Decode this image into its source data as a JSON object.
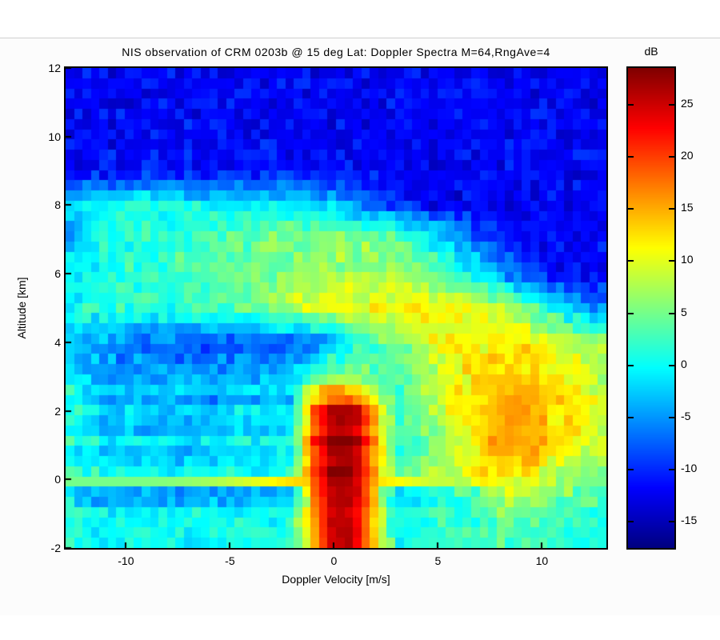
{
  "figure": {
    "title": "NIS observation of CRM 0203b @ 15 deg Lat: Doppler Spectra M=64,RngAve=4",
    "xlabel": "Doppler Velocity [m/s]",
    "ylabel": "Altitude [km]",
    "colorbar_title": "dB"
  },
  "axes": {
    "x_ticks": [
      -10,
      -5,
      0,
      5,
      10
    ],
    "y_ticks": [
      12,
      10,
      8,
      6,
      4,
      2,
      0,
      -2
    ],
    "colorbar_ticks": [
      25,
      20,
      15,
      10,
      5,
      0,
      -5,
      -10,
      -15
    ]
  },
  "chart_data": {
    "type": "heatmap",
    "title": "NIS observation of CRM 0203b @ 15 deg Lat: Doppler Spectra M=64,RngAve=4",
    "xlabel": "Doppler Velocity [m/s]",
    "ylabel": "Altitude [km]",
    "colorbar_label": "dB",
    "colormap": "jet",
    "color_limits_dB": [
      -17.5,
      28.5
    ],
    "x_range_displayed": [
      -12.9,
      13.1
    ],
    "y_range": [
      -2,
      12
    ],
    "x_ticks": [
      -10,
      -5,
      0,
      5,
      10
    ],
    "y_ticks": [
      12,
      10,
      8,
      6,
      4,
      2,
      0,
      -2
    ],
    "colorbar_ticks_dB": [
      25,
      20,
      15,
      10,
      5,
      0,
      -5,
      -10,
      -15
    ],
    "spectral_bins": 64,
    "range_gates": 47,
    "grid_velocity_mps": [
      -13,
      -12,
      -11,
      -10,
      -9,
      -8,
      -7,
      -6,
      -5,
      -4,
      -3,
      -2,
      -1,
      0,
      1,
      2,
      3,
      4,
      5,
      6,
      7,
      8,
      9,
      10,
      11,
      12,
      13
    ],
    "grid_altitude_km": [
      12,
      11,
      10,
      9,
      8,
      7,
      6,
      5,
      4,
      3,
      2,
      1,
      0,
      -1,
      -2
    ],
    "values_dB": [
      [
        -12,
        -12,
        -12,
        -12,
        -12,
        -12,
        -12,
        -12,
        -12,
        -12,
        -12,
        -12,
        -12,
        -12,
        -12,
        -12,
        -12,
        -12,
        -12,
        -12,
        -12,
        -12,
        -12,
        -12,
        -12,
        -12,
        -12
      ],
      [
        -12,
        -12,
        -12,
        -12,
        -12,
        -12,
        -12,
        -12,
        -12,
        -12,
        -12,
        -12,
        -12,
        -12,
        -12,
        -12,
        -12,
        -12,
        -12,
        -12,
        -12,
        -12,
        -12,
        -12,
        -12,
        -12,
        -12
      ],
      [
        -12,
        -12,
        -12,
        -12,
        -12,
        -12,
        -12,
        -12,
        -12,
        -12,
        -12,
        -12,
        -12,
        -12,
        -12,
        -12,
        -12,
        -12,
        -12,
        -12,
        -12,
        -12,
        -12,
        -12,
        -12,
        -12,
        -12
      ],
      [
        -12,
        -12,
        -12,
        -12,
        -11,
        -11,
        -11,
        -11,
        -11,
        -11,
        -11,
        -11,
        -11,
        -11,
        -11,
        -12,
        -12,
        -12,
        -12,
        -12,
        -12,
        -12,
        -12,
        -12,
        -12,
        -12,
        -12
      ],
      [
        -3,
        -1,
        0,
        1,
        1,
        0,
        0,
        0,
        0,
        -1,
        -1,
        -1,
        -2,
        -3,
        -5,
        -7,
        -9,
        -11,
        -12,
        -12,
        -12,
        -12,
        -12,
        -12,
        -12,
        -12,
        -12
      ],
      [
        -4,
        -2,
        0,
        1,
        2,
        2,
        3,
        3,
        4,
        4,
        5,
        5,
        6,
        6,
        6,
        6,
        5,
        2,
        -1,
        -4,
        -7,
        -10,
        -12,
        -12,
        -12,
        -12,
        -12
      ],
      [
        -1,
        0,
        1,
        2,
        2,
        2,
        3,
        3,
        4,
        5,
        5,
        6,
        6,
        7,
        7,
        7,
        7,
        6,
        4,
        1,
        -2,
        -5,
        -8,
        -10,
        -12,
        -12,
        -12
      ],
      [
        0,
        1,
        1,
        2,
        2,
        2,
        2,
        3,
        3,
        4,
        6,
        8,
        10,
        11,
        11,
        11,
        12,
        12,
        11,
        11,
        10,
        8,
        6,
        2,
        -2,
        -5,
        -7
      ],
      [
        -1,
        -4,
        -5,
        -6,
        -7,
        -7,
        -7,
        -8,
        -8,
        -7,
        -7,
        -8,
        -8,
        -4,
        1,
        3,
        5,
        8,
        10,
        11,
        11,
        12,
        12,
        12,
        10,
        8,
        6
      ],
      [
        0,
        -2,
        -4,
        -5,
        -5,
        -5,
        -5,
        -5,
        -4,
        -4,
        -4,
        -2,
        3,
        6,
        6,
        4,
        3,
        6,
        9,
        11,
        13,
        14,
        14,
        13,
        12,
        10,
        8
      ],
      [
        1,
        -1,
        -3,
        -3,
        -3,
        -3,
        -3,
        -3,
        -2,
        -2,
        -2,
        -2,
        18,
        26,
        26,
        14,
        2,
        4,
        8,
        11,
        13,
        15,
        16,
        14,
        12,
        11,
        9
      ],
      [
        1,
        0,
        -2,
        -2,
        -2,
        -2,
        -2,
        -1,
        -1,
        -1,
        -1,
        0,
        20,
        28,
        27,
        15,
        2,
        3,
        6,
        9,
        12,
        15,
        16,
        14,
        12,
        10,
        8
      ],
      [
        1,
        0,
        -1,
        -1,
        -1,
        -1,
        -1,
        -1,
        -1,
        -1,
        -1,
        0,
        18,
        27,
        26,
        14,
        4,
        5,
        7,
        9,
        11,
        12,
        11,
        9,
        7,
        6,
        5
      ],
      [
        1,
        0,
        0,
        0,
        0,
        0,
        0,
        0,
        0,
        0,
        0,
        1,
        16,
        26,
        25,
        13,
        1,
        1,
        2,
        3,
        3,
        4,
        4,
        3,
        2,
        2,
        1
      ],
      [
        1,
        1,
        0,
        0,
        0,
        0,
        0,
        1,
        1,
        1,
        1,
        2,
        14,
        26,
        25,
        12,
        1,
        1,
        1,
        2,
        2,
        3,
        3,
        3,
        2,
        1,
        1
      ]
    ],
    "features": {
      "noise_floor_dB": -12,
      "surface_line_altitude_km": 0,
      "precipitation_column_velocity_mps": [
        -1.5,
        2
      ],
      "column_peak_dB": 28,
      "bright_band_altitude_km": 5,
      "right_lobe_center": {
        "velocity_mps": 9,
        "altitude_km": 1.5,
        "peak_dB": 16
      }
    }
  }
}
